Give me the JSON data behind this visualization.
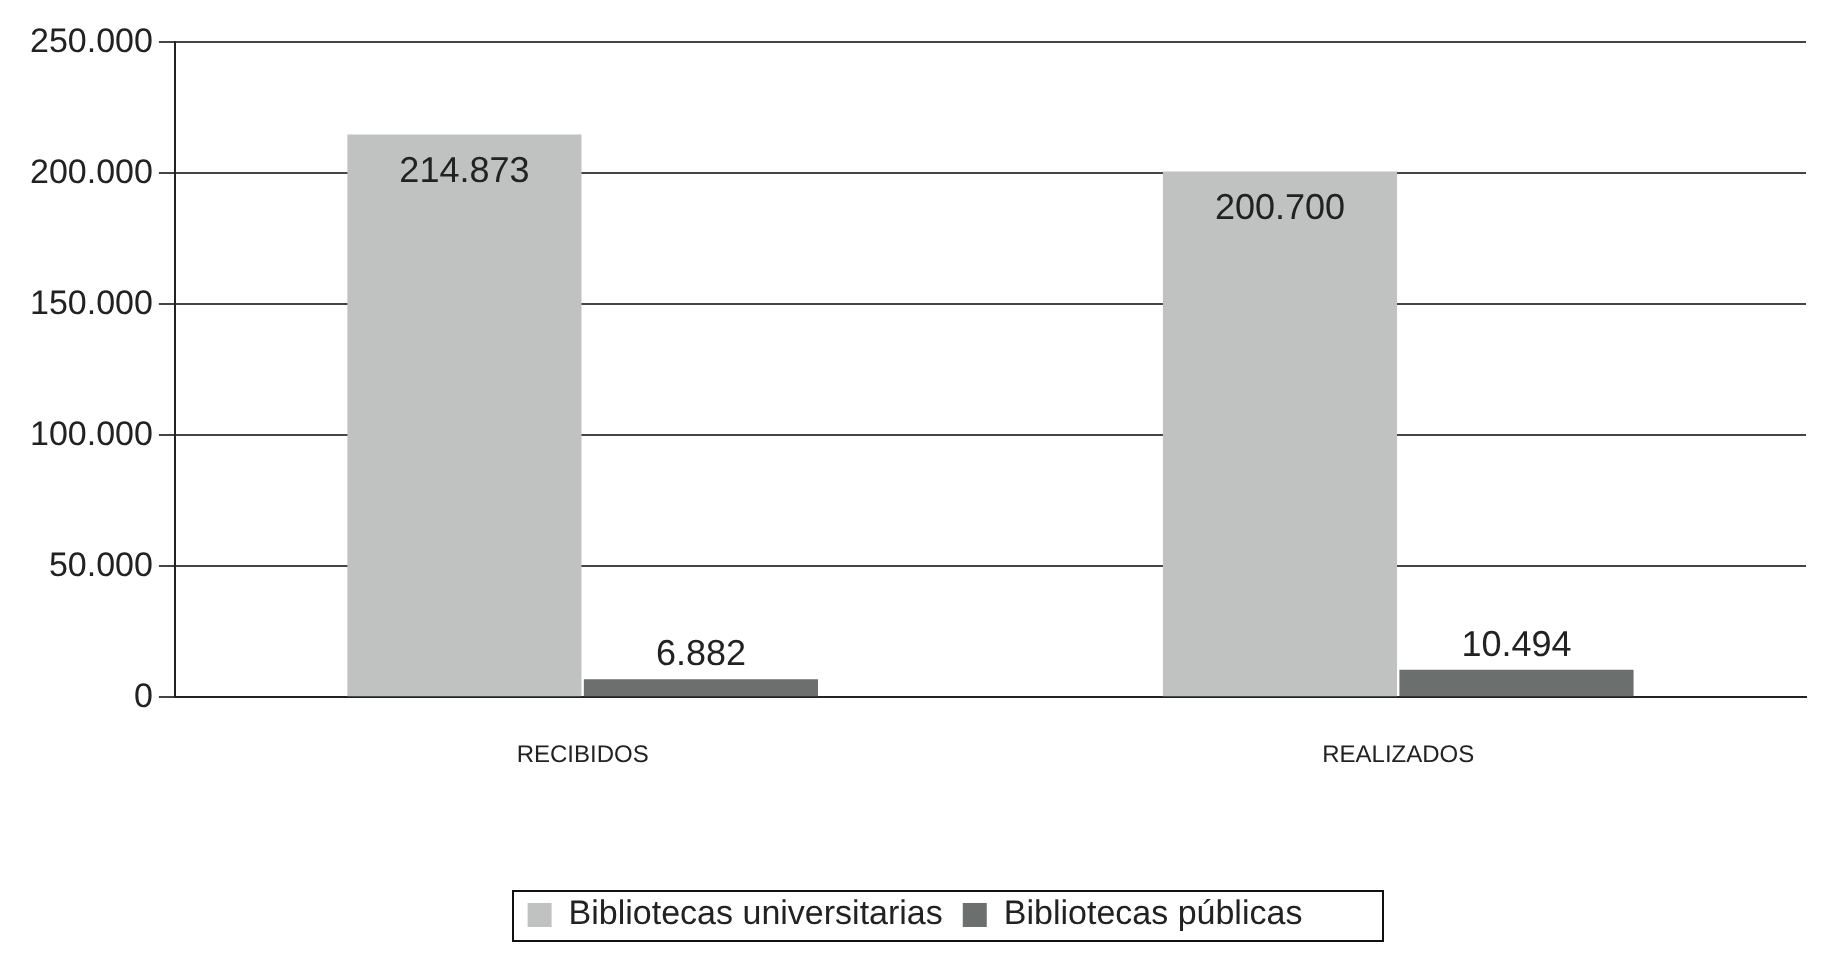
{
  "chart_data": {
    "type": "bar",
    "categories": [
      "RECIBIDOS",
      "REALIZADOS"
    ],
    "series": [
      {
        "name": "Bibliotecas universitarias",
        "color": "#c0c2c1",
        "values": [
          214873,
          200700
        ],
        "value_labels": [
          "214.873",
          "200.700"
        ]
      },
      {
        "name": "Bibliotecas públicas",
        "color": "#6b6f6e",
        "values": [
          6882,
          10494
        ],
        "value_labels": [
          "6.882",
          "10.494"
        ]
      }
    ],
    "ylim": [
      0,
      250000
    ],
    "yticks": [
      0,
      {
        "value": 50000,
        "label": "50.000"
      },
      {
        "value": 100000,
        "label": "100.000"
      },
      {
        "value": 150000,
        "label": "150.000"
      },
      {
        "value": 200000,
        "label": "200.000"
      },
      {
        "value": 250000,
        "label": "250.000"
      }
    ],
    "grid": "y",
    "legend": "bottom"
  }
}
